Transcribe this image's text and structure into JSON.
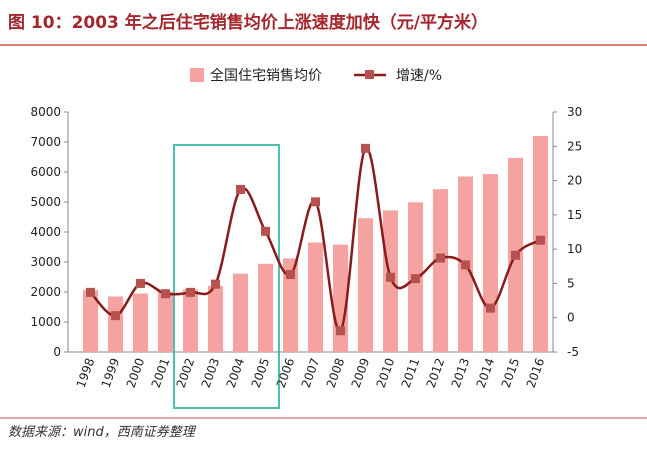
{
  "chart_data": {
    "type": "bar-line",
    "title": "图 10：2003 年之后住宅销售均价上涨速度加快（元/平方米）",
    "source": "数据来源：wind，西南证券整理",
    "categories": [
      "1998",
      "1999",
      "2000",
      "2001",
      "2002",
      "2003",
      "2004",
      "2005",
      "2006",
      "2007",
      "2008",
      "2009",
      "2010",
      "2011",
      "2012",
      "2013",
      "2014",
      "2015",
      "2016"
    ],
    "series": [
      {
        "name": "全国住宅销售均价",
        "type": "bar",
        "color": "#f4a3a0",
        "values": [
          2060,
          1850,
          1950,
          2020,
          2090,
          2200,
          2610,
          2940,
          3120,
          3650,
          3580,
          4460,
          4720,
          4990,
          5430,
          5850,
          5930,
          6470,
          7200
        ]
      },
      {
        "name": "增速/%",
        "type": "line",
        "axis": "y2",
        "color": "#8b1a1a",
        "marker_color": "#b5524f",
        "values": [
          3.7,
          0.3,
          5.0,
          3.5,
          3.7,
          4.9,
          18.7,
          12.6,
          6.3,
          16.9,
          -1.9,
          24.7,
          5.9,
          5.7,
          8.7,
          7.7,
          1.4,
          9.1,
          11.3
        ]
      }
    ],
    "ylim": [
      0,
      8000
    ],
    "yticks": [
      0,
      1000,
      2000,
      3000,
      4000,
      5000,
      6000,
      7000,
      8000
    ],
    "y2lim": [
      -5,
      30
    ],
    "y2ticks": [
      -5,
      0,
      5,
      10,
      15,
      20,
      25,
      30
    ],
    "grid": false
  }
}
